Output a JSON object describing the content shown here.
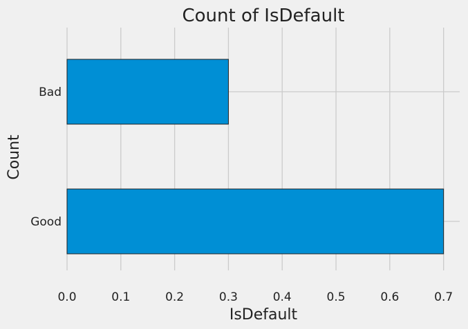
{
  "chart_data": {
    "type": "bar",
    "orientation": "horizontal",
    "title": "Count of IsDefault",
    "xlabel": "IsDefault",
    "ylabel": "Count",
    "categories": [
      "Good",
      "Bad"
    ],
    "values": [
      0.7,
      0.3
    ],
    "xlim": [
      0.0,
      0.73
    ],
    "xticks": [
      "0.0",
      "0.1",
      "0.2",
      "0.3",
      "0.4",
      "0.5",
      "0.6",
      "0.7"
    ],
    "grid": true,
    "bar_color": "#008fd5",
    "background_color": "#f0f0f0",
    "grid_color": "#cbcbcb"
  }
}
